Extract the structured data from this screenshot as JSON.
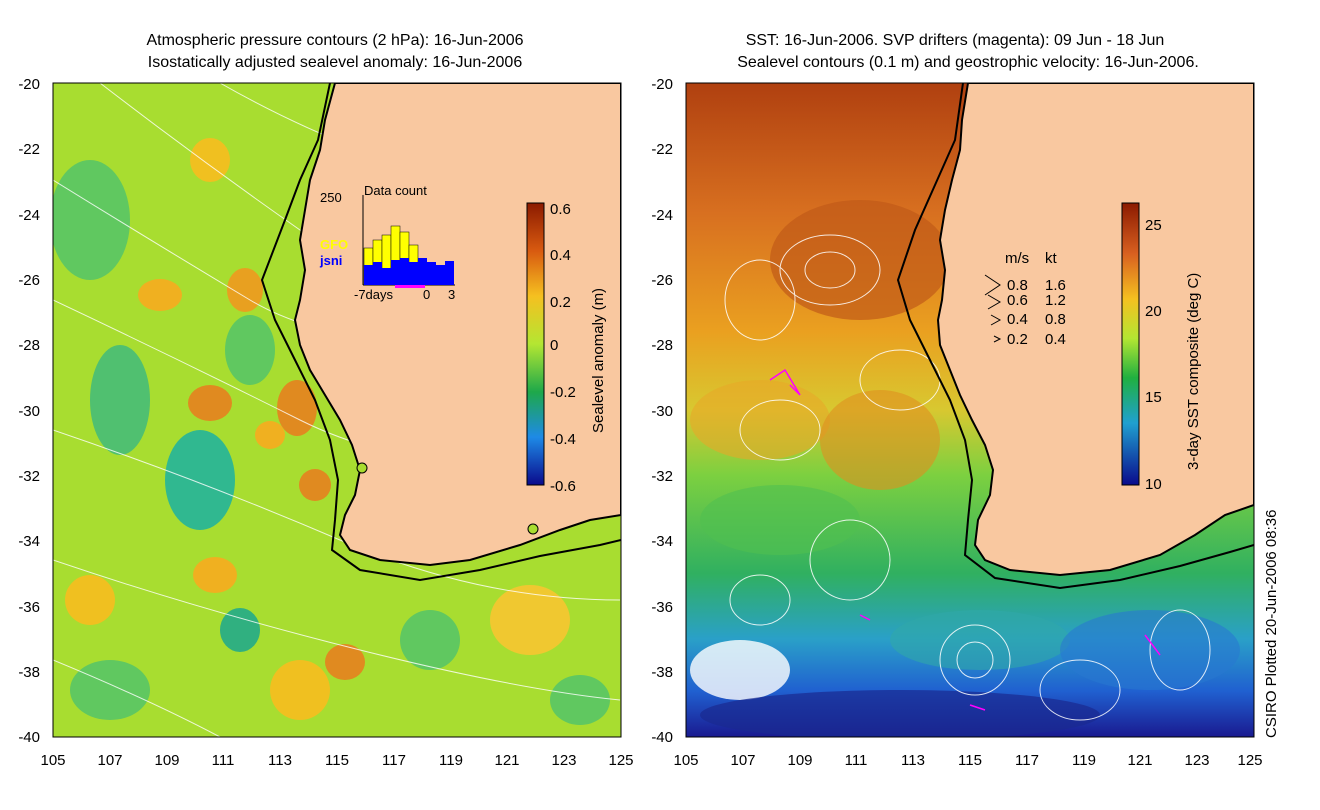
{
  "left_panel": {
    "title_line1": "Atmospheric pressure contours (2 hPa): 16-Jun-2006",
    "title_line2": "Isostatically adjusted sealevel anomaly: 16-Jun-2006",
    "inset": {
      "title": "Data count",
      "ymax_label": "250",
      "series1": "GFO",
      "series2": "jsni",
      "series1_color": "#ffff00",
      "series2_color": "#0000ff",
      "xlabel_left": "-7days",
      "xlabel_mid": "0",
      "xlabel_right": "3"
    },
    "colorbar": {
      "label": "Sealevel anomaly (m)",
      "ticks": [
        "0.6",
        "0.4",
        "0.2",
        "0",
        "-0.2",
        "-0.4",
        "-0.6"
      ]
    }
  },
  "right_panel": {
    "title_line1": "SST: 16-Jun-2006. SVP drifters (magenta): 09 Jun - 18 Jun",
    "title_line2": "Sealevel contours (0.1 m) and geostrophic velocity: 16-Jun-2006.",
    "legend": {
      "header_ms": "m/s",
      "header_kt": "kt",
      "rows": [
        {
          "ms": "0.8",
          "kt": "1.6"
        },
        {
          "ms": "0.6",
          "kt": "1.2"
        },
        {
          "ms": "0.4",
          "kt": "0.8"
        },
        {
          "ms": "0.2",
          "kt": "0.4"
        }
      ]
    },
    "colorbar": {
      "label": "3-day SST composite (deg C)",
      "ticks": [
        "25",
        "20",
        "15",
        "10"
      ]
    }
  },
  "axes": {
    "y_ticks": [
      "-20",
      "-22",
      "-24",
      "-26",
      "-28",
      "-30",
      "-32",
      "-34",
      "-36",
      "-38",
      "-40"
    ],
    "x_ticks": [
      "105",
      "107",
      "109",
      "111",
      "113",
      "115",
      "117",
      "119",
      "121",
      "123",
      "125"
    ]
  },
  "credit": "CSIRO Plotted 20-Jun-2006 08:36",
  "colors": {
    "land": "#f9c8a0",
    "ocean_base_left": "#a8dd30",
    "ocean_base_right": "#e6a020"
  }
}
